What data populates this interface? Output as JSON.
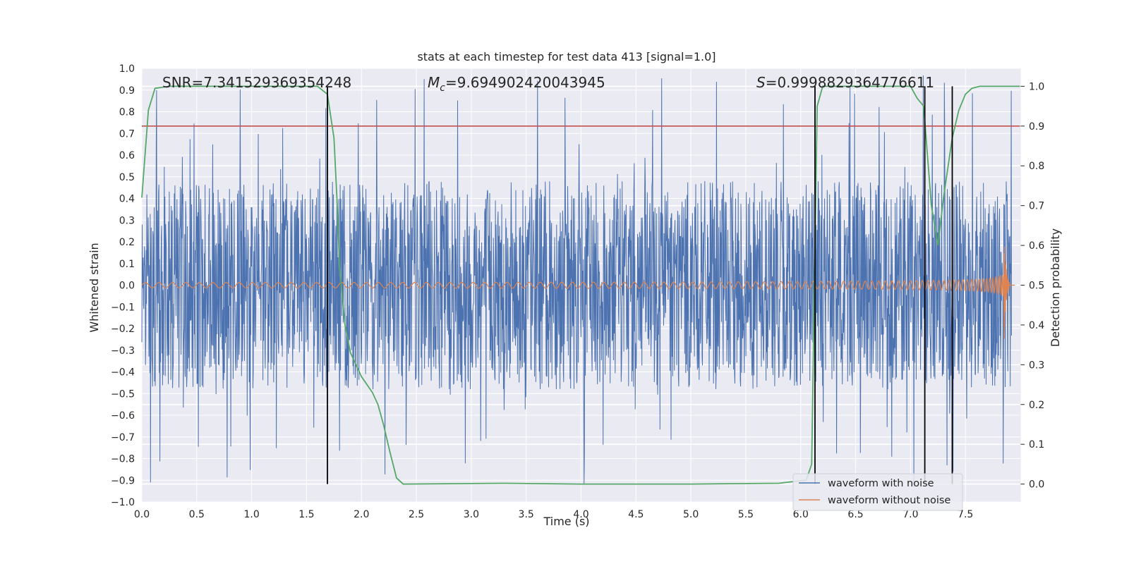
{
  "chart_data": {
    "type": "line",
    "title": "stats at each timestep for test data 413 [signal=1.0]",
    "xlabel": "Time (s)",
    "ylabel": "Whitened strain",
    "y2label": "Detection probability",
    "xlim": [
      0.0,
      8.0
    ],
    "ylim": [
      -1.0,
      1.0
    ],
    "y2lim": [
      -0.045,
      1.045
    ],
    "x_ticks": [
      "0.0",
      "0.5",
      "1.0",
      "1.5",
      "2.0",
      "2.5",
      "3.0",
      "3.5",
      "4.0",
      "4.5",
      "5.0",
      "5.5",
      "6.0",
      "6.5",
      "7.0",
      "7.5"
    ],
    "y_ticks": [
      "1.0",
      "0.9",
      "0.8",
      "0.7",
      "0.6",
      "0.5",
      "0.4",
      "0.3",
      "0.2",
      "0.1",
      "0.0",
      "−0.1",
      "−0.2",
      "−0.3",
      "−0.4",
      "−0.5",
      "−0.6",
      "−0.7",
      "−0.8",
      "−0.9",
      "−1.0"
    ],
    "y2_ticks": [
      "1.0",
      "0.9",
      "0.8",
      "0.7",
      "0.6",
      "0.5",
      "0.4",
      "0.3",
      "0.2",
      "0.1",
      "0.0"
    ],
    "annotations": {
      "snr": "SNR=7.341529369354248",
      "mc_symbol": "M",
      "mc_sub": "c",
      "mc_value": "=9.694902420043945",
      "s_symbol": "S",
      "s_value": "=0.9998829364776611"
    },
    "threshold_y2": 0.9,
    "detection_markers_x": [
      1.69,
      6.13,
      7.13,
      7.38
    ],
    "detection_probability": {
      "x": [
        0.0,
        0.06,
        0.12,
        0.25,
        0.5,
        1.0,
        1.5,
        1.6,
        1.69,
        1.75,
        1.78,
        1.8,
        1.85,
        1.9,
        2.0,
        2.1,
        2.15,
        2.2,
        2.26,
        2.32,
        2.38,
        3.3,
        4.0,
        5.0,
        5.8,
        6.05,
        6.1,
        6.13,
        6.15,
        6.2,
        6.25,
        6.5,
        7.0,
        7.06,
        7.12,
        7.19,
        7.25,
        7.3,
        7.38,
        7.44,
        7.5,
        7.56,
        7.63,
        7.7,
        8.0
      ],
      "y": [
        0.72,
        0.94,
        0.995,
        1.0,
        1.0,
        1.0,
        1.0,
        1.0,
        0.98,
        0.87,
        0.7,
        0.55,
        0.4,
        0.33,
        0.27,
        0.23,
        0.2,
        0.15,
        0.08,
        0.015,
        0.0,
        0.002,
        0.0,
        0.0,
        0.002,
        0.01,
        0.05,
        0.6,
        0.95,
        1.0,
        1.0,
        1.0,
        1.0,
        0.97,
        0.95,
        0.7,
        0.6,
        0.72,
        0.87,
        0.94,
        0.98,
        0.995,
        1.0,
        1.0,
        1.0
      ]
    },
    "series": [
      {
        "name": "waveform with noise",
        "color": "#4c72b0",
        "typical_amplitude": 0.3,
        "peak_amplitude": 0.98
      },
      {
        "name": "waveform without noise",
        "color": "#dd8452",
        "start_amplitude": 0.012,
        "peak_amplitude": 0.3,
        "merger_time": 7.85,
        "ringdown_end": 7.9
      }
    ],
    "legend": {
      "placement": "lower-right",
      "items": [
        {
          "label": "waveform with noise",
          "color": "#4c72b0"
        },
        {
          "label": "waveform without noise",
          "color": "#dd8452"
        }
      ]
    },
    "colors": {
      "axes_bg": "#eaeaf2",
      "grid": "#ffffff",
      "prob": "#55a868",
      "threshold": "#c44e52",
      "markers": "#000000"
    },
    "grid": true
  }
}
